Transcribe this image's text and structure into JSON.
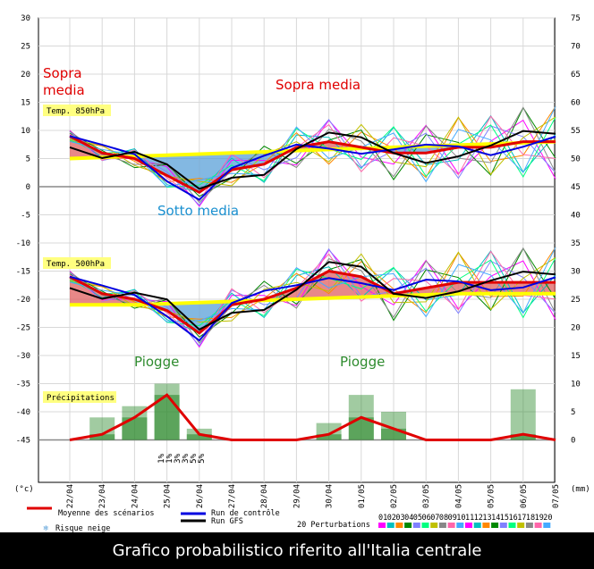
{
  "footer_title": "Grafico probabilistico riferito all'Italia centrale",
  "axes": {
    "left_unit": "(°c)",
    "right_unit": "(mm)",
    "left_ticks": [
      30,
      25,
      20,
      15,
      10,
      5,
      0,
      -5,
      -10,
      -15,
      -20,
      -25,
      -30,
      -35,
      -40,
      -45
    ],
    "right_ticks": [
      75,
      70,
      65,
      60,
      55,
      50,
      45,
      40,
      35,
      30,
      25,
      20,
      15,
      10,
      5,
      0
    ],
    "dates": [
      "22/04",
      "23/04",
      "24/04",
      "25/04",
      "26/04",
      "27/04",
      "28/04",
      "29/04",
      "30/04",
      "01/05",
      "02/05",
      "03/05",
      "04/05",
      "05/05",
      "06/05",
      "07/05"
    ]
  },
  "panels": {
    "t850_label": "Temp. 850hPa",
    "t500_label": "Temp. 500hPa",
    "precip_label": "Précipitations"
  },
  "annotations": {
    "sopra_media_1": "Sopra",
    "sopra_media_1b": "media",
    "sopra_media_2": "Sopra media",
    "sotto_media": "Sotto media",
    "piogge_1": "Piogge",
    "piogge_2": "Piogge"
  },
  "snow_risk": [
    "1%",
    "1%",
    "3%",
    "3%",
    "5%",
    "5%"
  ],
  "legend": {
    "mean": "Moyenne des scénarios",
    "control": "Run de contrôle",
    "gfs": "Run GFS",
    "perturbations": "20 Perturbations",
    "snow": "Risque neige",
    "perturbation_ids": [
      "01",
      "02",
      "03",
      "04",
      "05",
      "06",
      "07",
      "08",
      "09",
      "10",
      "11",
      "12",
      "13",
      "14",
      "15",
      "16",
      "17",
      "18",
      "19",
      "20"
    ]
  },
  "colors": {
    "mean": "#e00000",
    "control": "#0000e0",
    "gfs": "#000000",
    "climate": "#ffff00",
    "above": "#e06060",
    "below": "#5aa0d8",
    "precip": "#2e8b2e",
    "red_text": "#e00000",
    "blue_text": "#1a90d0",
    "green_text": "#2e8b2e"
  },
  "chart_data": {
    "type": "line",
    "x": [
      "22/04",
      "23/04",
      "24/04",
      "25/04",
      "26/04",
      "27/04",
      "28/04",
      "29/04",
      "30/04",
      "01/05",
      "02/05",
      "03/05",
      "04/05",
      "05/05",
      "06/05",
      "07/05"
    ],
    "series": [
      {
        "name": "Temp. 850hPa",
        "unit": "°C",
        "values": [
          9,
          6,
          5,
          2,
          -1,
          3,
          4,
          7,
          8,
          7,
          6,
          6,
          7,
          7,
          8,
          8
        ],
        "climate_mean": [
          5,
          5.2,
          5.4,
          5.6,
          5.8,
          6,
          6.2,
          6.4,
          6.6,
          6.8,
          7,
          7.2,
          7.4,
          7.6,
          7.8,
          8
        ]
      },
      {
        "name": "Temp. 500hPa",
        "unit": "°C",
        "values": [
          -16,
          -19,
          -20,
          -22,
          -26,
          -21,
          -20,
          -18,
          -15,
          -16,
          -19,
          -18,
          -17,
          -17,
          -17,
          -17
        ],
        "climate_mean": [
          -21,
          -21,
          -21,
          -20.8,
          -20.6,
          -20.4,
          -20.2,
          -20,
          -19.8,
          -19.6,
          -19.4,
          -19.2,
          -19,
          -19,
          -19,
          -19
        ]
      },
      {
        "name": "Précipitations",
        "unit": "mm",
        "values": [
          0,
          1,
          4,
          8,
          1,
          0,
          0,
          0,
          1,
          4,
          2,
          0,
          0,
          0,
          1,
          0
        ],
        "max": [
          0,
          4,
          6,
          10,
          2,
          0,
          0,
          0,
          3,
          8,
          5,
          0,
          0,
          0,
          9,
          0
        ]
      }
    ],
    "left_axis": {
      "unit": "°C",
      "range": [
        -45,
        30
      ]
    },
    "right_axis": {
      "unit": "mm",
      "range": [
        0,
        75
      ]
    },
    "grid": true
  }
}
